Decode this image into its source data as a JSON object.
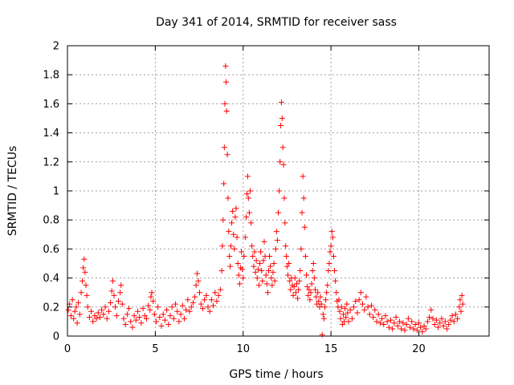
{
  "chart_data": {
    "type": "scatter",
    "title": "Day 341 of 2014, SRMTID for receiver sass",
    "xlabel": "GPS time / hours",
    "ylabel": "SRMTID / TECUs",
    "xlim": [
      0,
      24
    ],
    "ylim": [
      0,
      2
    ],
    "xticks": [
      0,
      5,
      10,
      15,
      20
    ],
    "yticks": [
      0,
      0.2,
      0.4,
      0.6,
      0.8,
      1,
      1.2,
      1.4,
      1.6,
      1.8,
      2
    ],
    "xtick_labels": [
      "0",
      "5",
      "10",
      "15",
      "20"
    ],
    "ytick_labels": [
      "0",
      "0.2",
      "0.4",
      "0.6",
      "0.8",
      "1",
      "1.2",
      "1.4",
      "1.6",
      "1.8",
      "2"
    ],
    "grid": true,
    "marker": "+",
    "series": [
      {
        "name": "SRMTID",
        "color": "#ff0000",
        "points": [
          [
            0.05,
            0.18
          ],
          [
            0.12,
            0.22
          ],
          [
            0.2,
            0.14
          ],
          [
            0.28,
            0.25
          ],
          [
            0.35,
            0.12
          ],
          [
            0.42,
            0.17
          ],
          [
            0.5,
            0.2
          ],
          [
            0.55,
            0.09
          ],
          [
            0.62,
            0.23
          ],
          [
            0.7,
            0.15
          ],
          [
            0.78,
            0.3
          ],
          [
            0.85,
            0.38
          ],
          [
            0.9,
            0.47
          ],
          [
            0.95,
            0.53
          ],
          [
            1.0,
            0.44
          ],
          [
            1.05,
            0.35
          ],
          [
            1.1,
            0.28
          ],
          [
            1.15,
            0.2
          ],
          [
            1.25,
            0.13
          ],
          [
            1.35,
            0.17
          ],
          [
            1.45,
            0.1
          ],
          [
            1.55,
            0.14
          ],
          [
            1.65,
            0.12
          ],
          [
            1.75,
            0.16
          ],
          [
            1.85,
            0.13
          ],
          [
            1.95,
            0.18
          ],
          [
            2.05,
            0.15
          ],
          [
            2.15,
            0.2
          ],
          [
            2.25,
            0.12
          ],
          [
            2.35,
            0.17
          ],
          [
            2.45,
            0.23
          ],
          [
            2.52,
            0.31
          ],
          [
            2.58,
            0.38
          ],
          [
            2.65,
            0.28
          ],
          [
            2.72,
            0.2
          ],
          [
            2.8,
            0.14
          ],
          [
            2.9,
            0.24
          ],
          [
            3.0,
            0.3
          ],
          [
            3.05,
            0.35
          ],
          [
            3.12,
            0.22
          ],
          [
            3.2,
            0.12
          ],
          [
            3.3,
            0.08
          ],
          [
            3.4,
            0.15
          ],
          [
            3.5,
            0.19
          ],
          [
            3.6,
            0.1
          ],
          [
            3.7,
            0.06
          ],
          [
            3.8,
            0.14
          ],
          [
            3.9,
            0.11
          ],
          [
            4.0,
            0.17
          ],
          [
            4.1,
            0.13
          ],
          [
            4.2,
            0.09
          ],
          [
            4.3,
            0.19
          ],
          [
            4.4,
            0.14
          ],
          [
            4.5,
            0.12
          ],
          [
            4.6,
            0.21
          ],
          [
            4.7,
            0.18
          ],
          [
            4.75,
            0.27
          ],
          [
            4.8,
            0.3
          ],
          [
            4.88,
            0.24
          ],
          [
            4.95,
            0.15
          ],
          [
            5.05,
            0.1
          ],
          [
            5.15,
            0.2
          ],
          [
            5.25,
            0.13
          ],
          [
            5.35,
            0.07
          ],
          [
            5.45,
            0.15
          ],
          [
            5.55,
            0.11
          ],
          [
            5.65,
            0.18
          ],
          [
            5.75,
            0.08
          ],
          [
            5.85,
            0.14
          ],
          [
            5.95,
            0.2
          ],
          [
            6.05,
            0.12
          ],
          [
            6.15,
            0.22
          ],
          [
            6.25,
            0.17
          ],
          [
            6.35,
            0.1
          ],
          [
            6.45,
            0.15
          ],
          [
            6.55,
            0.21
          ],
          [
            6.65,
            0.12
          ],
          [
            6.75,
            0.18
          ],
          [
            6.85,
            0.25
          ],
          [
            6.95,
            0.17
          ],
          [
            7.05,
            0.2
          ],
          [
            7.15,
            0.23
          ],
          [
            7.25,
            0.27
          ],
          [
            7.32,
            0.35
          ],
          [
            7.38,
            0.43
          ],
          [
            7.45,
            0.38
          ],
          [
            7.52,
            0.3
          ],
          [
            7.6,
            0.22
          ],
          [
            7.7,
            0.19
          ],
          [
            7.8,
            0.25
          ],
          [
            7.9,
            0.28
          ],
          [
            8.0,
            0.2
          ],
          [
            8.1,
            0.17
          ],
          [
            8.2,
            0.25
          ],
          [
            8.3,
            0.21
          ],
          [
            8.4,
            0.3
          ],
          [
            8.5,
            0.24
          ],
          [
            8.6,
            0.28
          ],
          [
            8.7,
            0.32
          ],
          [
            8.78,
            0.45
          ],
          [
            8.82,
            0.62
          ],
          [
            8.86,
            0.8
          ],
          [
            8.9,
            1.05
          ],
          [
            8.93,
            1.3
          ],
          [
            8.96,
            1.6
          ],
          [
            9.0,
            1.86
          ],
          [
            9.03,
            1.75
          ],
          [
            9.06,
            1.55
          ],
          [
            9.1,
            1.25
          ],
          [
            9.14,
            0.95
          ],
          [
            9.18,
            0.72
          ],
          [
            9.22,
            0.55
          ],
          [
            9.26,
            0.48
          ],
          [
            9.3,
            0.62
          ],
          [
            9.35,
            0.78
          ],
          [
            9.4,
            0.86
          ],
          [
            9.45,
            0.7
          ],
          [
            9.5,
            0.6
          ],
          [
            9.55,
            0.82
          ],
          [
            9.6,
            0.88
          ],
          [
            9.65,
            0.68
          ],
          [
            9.7,
            0.5
          ],
          [
            9.75,
            0.42
          ],
          [
            9.8,
            0.36
          ],
          [
            9.85,
            0.47
          ],
          [
            9.9,
            0.58
          ],
          [
            9.95,
            0.46
          ],
          [
            10.0,
            0.4
          ],
          [
            10.05,
            0.55
          ],
          [
            10.12,
            0.68
          ],
          [
            10.18,
            0.82
          ],
          [
            10.22,
            0.98
          ],
          [
            10.26,
            1.1
          ],
          [
            10.3,
            0.95
          ],
          [
            10.35,
            0.85
          ],
          [
            10.4,
            1.0
          ],
          [
            10.45,
            0.78
          ],
          [
            10.5,
            0.62
          ],
          [
            10.55,
            0.55
          ],
          [
            10.6,
            0.48
          ],
          [
            10.65,
            0.58
          ],
          [
            10.7,
            0.44
          ],
          [
            10.75,
            0.52
          ],
          [
            10.8,
            0.4
          ],
          [
            10.85,
            0.46
          ],
          [
            10.9,
            0.35
          ],
          [
            10.95,
            0.5
          ],
          [
            11.0,
            0.58
          ],
          [
            11.05,
            0.45
          ],
          [
            11.1,
            0.38
          ],
          [
            11.15,
            0.52
          ],
          [
            11.2,
            0.65
          ],
          [
            11.25,
            0.55
          ],
          [
            11.3,
            0.42
          ],
          [
            11.35,
            0.36
          ],
          [
            11.4,
            0.3
          ],
          [
            11.45,
            0.45
          ],
          [
            11.5,
            0.55
          ],
          [
            11.55,
            0.48
          ],
          [
            11.6,
            0.4
          ],
          [
            11.65,
            0.35
          ],
          [
            11.7,
            0.44
          ],
          [
            11.75,
            0.5
          ],
          [
            11.8,
            0.38
          ],
          [
            11.85,
            0.6
          ],
          [
            11.9,
            0.72
          ],
          [
            11.95,
            0.66
          ],
          [
            12.0,
            0.85
          ],
          [
            12.05,
            1.0
          ],
          [
            12.1,
            1.2
          ],
          [
            12.14,
            1.45
          ],
          [
            12.18,
            1.61
          ],
          [
            12.22,
            1.5
          ],
          [
            12.26,
            1.3
          ],
          [
            12.3,
            1.18
          ],
          [
            12.34,
            0.95
          ],
          [
            12.38,
            0.78
          ],
          [
            12.42,
            0.62
          ],
          [
            12.46,
            0.55
          ],
          [
            12.5,
            0.48
          ],
          [
            12.55,
            0.42
          ],
          [
            12.6,
            0.5
          ],
          [
            12.65,
            0.38
          ],
          [
            12.7,
            0.32
          ],
          [
            12.75,
            0.4
          ],
          [
            12.8,
            0.35
          ],
          [
            12.85,
            0.28
          ],
          [
            12.9,
            0.34
          ],
          [
            12.95,
            0.4
          ],
          [
            13.0,
            0.3
          ],
          [
            13.05,
            0.36
          ],
          [
            13.1,
            0.26
          ],
          [
            13.15,
            0.32
          ],
          [
            13.2,
            0.38
          ],
          [
            13.25,
            0.45
          ],
          [
            13.3,
            0.6
          ],
          [
            13.35,
            0.85
          ],
          [
            13.4,
            1.1
          ],
          [
            13.45,
            0.95
          ],
          [
            13.5,
            0.75
          ],
          [
            13.55,
            0.55
          ],
          [
            13.6,
            0.42
          ],
          [
            13.65,
            0.34
          ],
          [
            13.7,
            0.28
          ],
          [
            13.75,
            0.32
          ],
          [
            13.8,
            0.25
          ],
          [
            13.85,
            0.3
          ],
          [
            13.9,
            0.36
          ],
          [
            13.95,
            0.45
          ],
          [
            14.0,
            0.5
          ],
          [
            14.05,
            0.4
          ],
          [
            14.1,
            0.32
          ],
          [
            14.15,
            0.27
          ],
          [
            14.2,
            0.22
          ],
          [
            14.25,
            0.3
          ],
          [
            14.3,
            0.24
          ],
          [
            14.35,
            0.2
          ],
          [
            14.4,
            0.27
          ],
          [
            14.45,
            0.22
          ],
          [
            14.5,
            0.01
          ],
          [
            14.55,
            0.15
          ],
          [
            14.6,
            0.12
          ],
          [
            14.65,
            0.2
          ],
          [
            14.7,
            0.25
          ],
          [
            14.75,
            0.3
          ],
          [
            14.8,
            0.35
          ],
          [
            14.85,
            0.45
          ],
          [
            14.9,
            0.5
          ],
          [
            14.95,
            0.58
          ],
          [
            15.0,
            0.62
          ],
          [
            15.05,
            0.72
          ],
          [
            15.1,
            0.68
          ],
          [
            15.15,
            0.55
          ],
          [
            15.2,
            0.45
          ],
          [
            15.25,
            0.38
          ],
          [
            15.3,
            0.3
          ],
          [
            15.35,
            0.24
          ],
          [
            15.4,
            0.2
          ],
          [
            15.45,
            0.25
          ],
          [
            15.5,
            0.17
          ],
          [
            15.55,
            0.12
          ],
          [
            15.6,
            0.2
          ],
          [
            15.65,
            0.08
          ],
          [
            15.7,
            0.15
          ],
          [
            15.75,
            0.1
          ],
          [
            15.8,
            0.19
          ],
          [
            15.85,
            0.13
          ],
          [
            15.9,
            0.22
          ],
          [
            15.95,
            0.16
          ],
          [
            16.0,
            0.1
          ],
          [
            16.1,
            0.18
          ],
          [
            16.2,
            0.12
          ],
          [
            16.3,
            0.2
          ],
          [
            16.4,
            0.24
          ],
          [
            16.5,
            0.16
          ],
          [
            16.6,
            0.25
          ],
          [
            16.7,
            0.3
          ],
          [
            16.8,
            0.22
          ],
          [
            16.9,
            0.18
          ],
          [
            17.0,
            0.27
          ],
          [
            17.1,
            0.2
          ],
          [
            17.2,
            0.15
          ],
          [
            17.3,
            0.21
          ],
          [
            17.4,
            0.13
          ],
          [
            17.5,
            0.18
          ],
          [
            17.6,
            0.1
          ],
          [
            17.7,
            0.15
          ],
          [
            17.8,
            0.09
          ],
          [
            17.9,
            0.12
          ],
          [
            18.0,
            0.08
          ],
          [
            18.1,
            0.14
          ],
          [
            18.2,
            0.1
          ],
          [
            18.3,
            0.06
          ],
          [
            18.4,
            0.11
          ],
          [
            18.5,
            0.05
          ],
          [
            18.6,
            0.09
          ],
          [
            18.7,
            0.13
          ],
          [
            18.8,
            0.07
          ],
          [
            18.9,
            0.1
          ],
          [
            19.0,
            0.05
          ],
          [
            19.1,
            0.09
          ],
          [
            19.2,
            0.04
          ],
          [
            19.3,
            0.08
          ],
          [
            19.4,
            0.12
          ],
          [
            19.5,
            0.06
          ],
          [
            19.6,
            0.1
          ],
          [
            19.7,
            0.05
          ],
          [
            19.8,
            0.08
          ],
          [
            19.9,
            0.04
          ],
          [
            20.0,
            0.09
          ],
          [
            20.1,
            0.06
          ],
          [
            20.2,
            0.03
          ],
          [
            20.3,
            0.07
          ],
          [
            20.4,
            0.05
          ],
          [
            20.5,
            0.1
          ],
          [
            20.6,
            0.13
          ],
          [
            20.7,
            0.18
          ],
          [
            20.8,
            0.12
          ],
          [
            20.9,
            0.08
          ],
          [
            21.0,
            0.11
          ],
          [
            21.1,
            0.06
          ],
          [
            21.2,
            0.09
          ],
          [
            21.3,
            0.12
          ],
          [
            21.4,
            0.07
          ],
          [
            21.5,
            0.1
          ],
          [
            21.6,
            0.05
          ],
          [
            21.7,
            0.08
          ],
          [
            21.8,
            0.11
          ],
          [
            21.9,
            0.14
          ],
          [
            22.0,
            0.1
          ],
          [
            22.1,
            0.15
          ],
          [
            22.2,
            0.12
          ],
          [
            22.3,
            0.2
          ],
          [
            22.35,
            0.25
          ],
          [
            22.4,
            0.17
          ],
          [
            22.45,
            0.28
          ],
          [
            22.5,
            0.22
          ]
        ]
      }
    ]
  }
}
